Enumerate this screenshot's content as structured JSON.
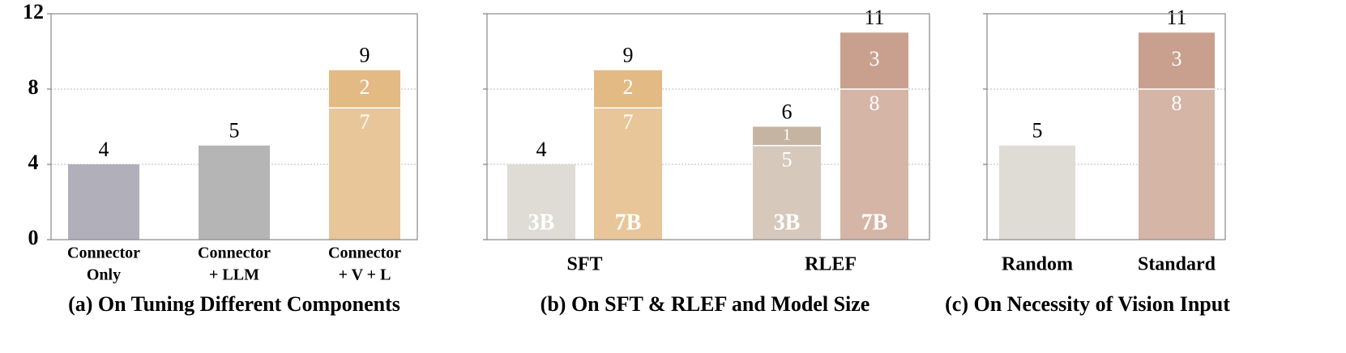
{
  "chart_data": [
    {
      "type": "stacked_bar",
      "title": "(a) On Tuning Different Components",
      "ylim": [
        0,
        12
      ],
      "yticks": [
        0,
        4,
        8,
        12
      ],
      "show_ytick_labels": true,
      "grid": true,
      "categories": [
        {
          "label": [
            "Connector",
            "Only"
          ],
          "bars": [
            {
              "total": 4,
              "segments": [
                {
                  "value": 4,
                  "color": "#b1afb9"
                }
              ]
            }
          ]
        },
        {
          "label": [
            "Connector",
            "+ LLM"
          ],
          "bars": [
            {
              "total": 5,
              "segments": [
                {
                  "value": 5,
                  "color": "#b5b5b5"
                }
              ]
            }
          ]
        },
        {
          "label": [
            "Connector",
            "+ V + L"
          ],
          "bars": [
            {
              "total": 9,
              "segments": [
                {
                  "value": 7,
                  "color": "#e8c699"
                },
                {
                  "value": 2,
                  "color": "#e3b984"
                }
              ]
            }
          ]
        }
      ]
    },
    {
      "type": "stacked_bar",
      "title": "(b) On SFT & RLEF and Model Size",
      "ylim": [
        0,
        12
      ],
      "yticks": [
        0,
        4,
        8,
        12
      ],
      "show_ytick_labels": false,
      "grid": true,
      "categories": [
        {
          "label": "SFT",
          "bars": [
            {
              "name": "3B",
              "total": 4,
              "segments": [
                {
                  "value": 4,
                  "color": "#dfdcd5"
                }
              ]
            },
            {
              "name": "7B",
              "total": 9,
              "segments": [
                {
                  "value": 7,
                  "color": "#e8c699"
                },
                {
                  "value": 2,
                  "color": "#e3b984"
                }
              ]
            }
          ]
        },
        {
          "label": "RLEF",
          "bars": [
            {
              "name": "3B",
              "total": 6,
              "segments": [
                {
                  "value": 5,
                  "color": "#d6c9bc"
                },
                {
                  "value": 1,
                  "color": "#c5b4a2"
                }
              ]
            },
            {
              "name": "7B",
              "total": 11,
              "segments": [
                {
                  "value": 8,
                  "color": "#d4b5a6"
                },
                {
                  "value": 3,
                  "color": "#c9a08e"
                }
              ]
            }
          ]
        }
      ]
    },
    {
      "type": "stacked_bar",
      "title": "(c) On Necessity of Vision Input",
      "ylim": [
        0,
        12
      ],
      "yticks": [
        0,
        4,
        8,
        12
      ],
      "show_ytick_labels": false,
      "grid": true,
      "categories": [
        {
          "label": "Random",
          "bars": [
            {
              "total": 5,
              "segments": [
                {
                  "value": 5,
                  "color": "#dfdcd5"
                }
              ]
            }
          ]
        },
        {
          "label": "Standard",
          "bars": [
            {
              "total": 11,
              "segments": [
                {
                  "value": 8,
                  "color": "#d4b5a6"
                },
                {
                  "value": 3,
                  "color": "#c9a08e"
                }
              ]
            }
          ]
        }
      ]
    }
  ]
}
